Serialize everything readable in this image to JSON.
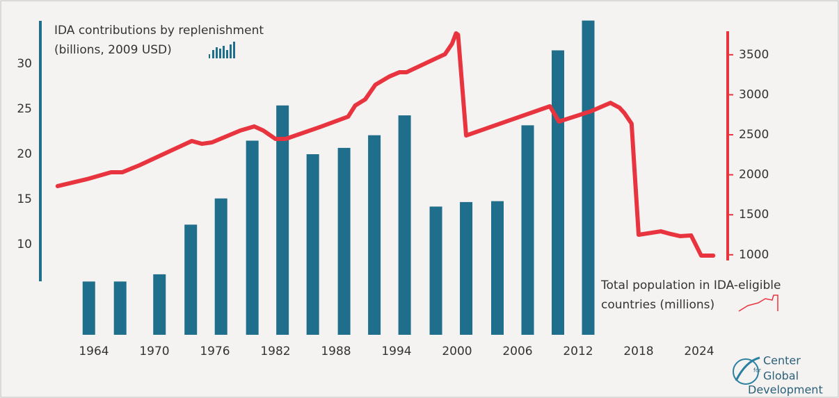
{
  "chart_data": {
    "type": "bar_line",
    "ylabel": [
      "IDA contributions by replenishment",
      "(billions, 2009 USD)"
    ],
    "y2label": [
      "Total population in IDA-eligible",
      "countries (millions)"
    ],
    "logo": [
      "Center",
      "for",
      "Global",
      "Development"
    ],
    "xlim": [
      1960,
      2026
    ],
    "xticks": [
      1964,
      1970,
      1976,
      1982,
      1988,
      1994,
      2000,
      2006,
      2012,
      2018,
      2024
    ],
    "ylim": [
      0,
      35
    ],
    "yticks": [
      10,
      15,
      20,
      25,
      30
    ],
    "y2lim": [
      0,
      3950
    ],
    "y2ticks": [
      1000,
      1500,
      2000,
      2500,
      3000,
      3500
    ],
    "series": [
      {
        "type": "bar",
        "color": "#1f6e8c",
        "x": [
          1963.5,
          1966.6,
          1970.5,
          1973.6,
          1976.6,
          1979.7,
          1982.7,
          1985.7,
          1988.8,
          1991.8,
          1994.8,
          1997.9,
          2000.9,
          2004.0,
          2007.0,
          2010.0,
          2013.0
        ],
        "values": [
          5.9,
          5.9,
          6.7,
          12.2,
          15.1,
          21.5,
          25.4,
          20.0,
          20.7,
          22.1,
          24.3,
          14.2,
          14.7,
          14.8,
          23.2,
          31.5,
          34.8
        ]
      },
      {
        "type": "line",
        "axis": "y2",
        "color": "#e8343f",
        "x": [
          1960.4,
          1963.3,
          1965.7,
          1966.8,
          1968.5,
          1973.7,
          1974.7,
          1975.7,
          1978.5,
          1979.9,
          1980.8,
          1982,
          1983,
          1986.4,
          1989.2,
          1989.9,
          1990.9,
          1991.9,
          1993.3,
          1994.3,
          1995,
          1998.8,
          1999.5,
          1999.9,
          2000.1,
          2000.9,
          2009.2,
          2010.1,
          2013.3,
          2015.2,
          2016.1,
          2016.6,
          2017.3,
          2018,
          2020.2,
          2021.2,
          2022.1,
          2023.2,
          2024.2,
          2025.4
        ],
        "values": [
          1858,
          1945,
          2031,
          2031,
          2118,
          2422,
          2387,
          2405,
          2552,
          2604,
          2552,
          2448,
          2448,
          2596,
          2726,
          2865,
          2943,
          3125,
          3229,
          3282,
          3282,
          3507,
          3637,
          3768,
          3750,
          2491,
          2856,
          2665,
          2795,
          2899,
          2839,
          2769,
          2639,
          1250,
          1293,
          1259,
          1233,
          1242,
          990,
          990
        ]
      }
    ]
  }
}
